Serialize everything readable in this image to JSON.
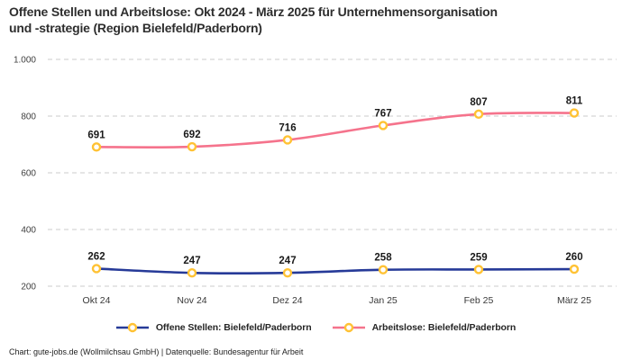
{
  "header": {
    "title_line1": "Offene Stellen und Arbeitslose: Okt 2024 - März 2025 für Unternehmensorganisation",
    "title_line2": "und -strategie (Region Bielefeld/Paderborn)"
  },
  "chart_data": {
    "type": "line",
    "title": "Offene Stellen und Arbeitslose: Okt 2024 - März 2025 für Unternehmensorganisation und -strategie (Region Bielefeld/Paderborn)",
    "categories": [
      "Okt 24",
      "Nov 24",
      "Dez 24",
      "Jan 25",
      "Feb 25",
      "März 25"
    ],
    "series": [
      {
        "name": "Offene Stellen: Bielefeld/Paderborn",
        "color": "#263A98",
        "values": [
          262,
          247,
          247,
          258,
          259,
          260
        ]
      },
      {
        "name": "Arbeitslose: Bielefeld/Paderborn",
        "color": "#F5738C",
        "values": [
          691,
          692,
          716,
          767,
          807,
          811
        ]
      }
    ],
    "marker": {
      "shape": "ring-circle",
      "fill": "#FFFFFF",
      "stroke": "#FFC234"
    },
    "y_axis": {
      "min": 200,
      "max": 1000,
      "ticks": [
        {
          "value": 200,
          "label": "200"
        },
        {
          "value": 400,
          "label": "400"
        },
        {
          "value": 600,
          "label": "600"
        },
        {
          "value": 800,
          "label": "800"
        },
        {
          "value": 1000,
          "label": "1.000"
        }
      ]
    },
    "xlabel": "",
    "ylabel": "",
    "grid": "horizontal-dashed",
    "grid_color": "#CBCBCB",
    "data_labels": true,
    "data_label_color": "#1a1a1a",
    "legend_position": "bottom",
    "line_style": "smooth"
  },
  "legend": {
    "items": [
      {
        "label": "Offene Stellen: Bielefeld/Paderborn",
        "color": "#263A98"
      },
      {
        "label": "Arbeitslose: Bielefeld/Paderborn",
        "color": "#F5738C"
      }
    ]
  },
  "footer": {
    "text": "Chart: gute-jobs.de (Wollmilchsau GmbH) | Datenquelle: Bundesagentur für Arbeit"
  }
}
